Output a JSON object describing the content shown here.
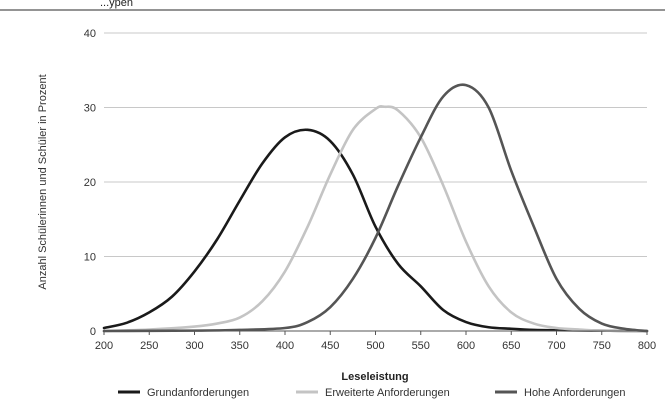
{
  "header": {
    "text": "...ypen"
  },
  "chart_data": {
    "type": "line",
    "title": "",
    "xlabel": "Leseleistung",
    "ylabel": "Anzahl Schülerinnen und Schüler in Prozent",
    "xlim": [
      200,
      800
    ],
    "ylim": [
      0,
      40
    ],
    "x_ticks": [
      200,
      250,
      300,
      350,
      400,
      450,
      500,
      550,
      600,
      650,
      700,
      750,
      800
    ],
    "y_ticks": [
      0,
      10,
      20,
      30,
      40
    ],
    "grid": "horizontal",
    "legend_position": "bottom",
    "series": [
      {
        "name": "Grundanforderungen",
        "color": "#1a1a1a",
        "x": [
          200,
          225,
          250,
          275,
          300,
          325,
          350,
          375,
          400,
          425,
          450,
          475,
          500,
          525,
          550,
          575,
          600,
          625,
          650,
          675,
          700,
          750,
          800
        ],
        "y": [
          0.4,
          1.1,
          2.5,
          4.6,
          8.0,
          12.3,
          17.5,
          22.5,
          26.0,
          27.0,
          25.5,
          21.0,
          14.0,
          9.0,
          6.0,
          2.8,
          1.2,
          0.5,
          0.3,
          0.15,
          0.1,
          0.05,
          0.0
        ]
      },
      {
        "name": "Erweiterte Anforderungen",
        "color": "#c4c4c4",
        "x": [
          200,
          250,
          300,
          325,
          350,
          375,
          400,
          425,
          450,
          475,
          500,
          510,
          525,
          550,
          575,
          600,
          625,
          650,
          675,
          700,
          725,
          750,
          800
        ],
        "y": [
          0.0,
          0.2,
          0.6,
          1.0,
          1.8,
          4.0,
          8.0,
          14.0,
          21.0,
          27.0,
          29.8,
          30.1,
          29.6,
          26.0,
          19.5,
          12.0,
          6.0,
          2.5,
          1.0,
          0.4,
          0.2,
          0.05,
          0.0
        ]
      },
      {
        "name": "Hohe Anforderungen",
        "color": "#555555",
        "x": [
          200,
          300,
          350,
          400,
          425,
          450,
          475,
          500,
          525,
          550,
          575,
          600,
          625,
          650,
          675,
          700,
          725,
          750,
          775,
          800
        ],
        "y": [
          0.0,
          0.05,
          0.15,
          0.4,
          1.2,
          3.2,
          7.0,
          12.5,
          19.5,
          26.0,
          31.5,
          33.0,
          30.0,
          21.5,
          14.0,
          7.0,
          3.0,
          1.0,
          0.3,
          0.0
        ]
      }
    ]
  }
}
